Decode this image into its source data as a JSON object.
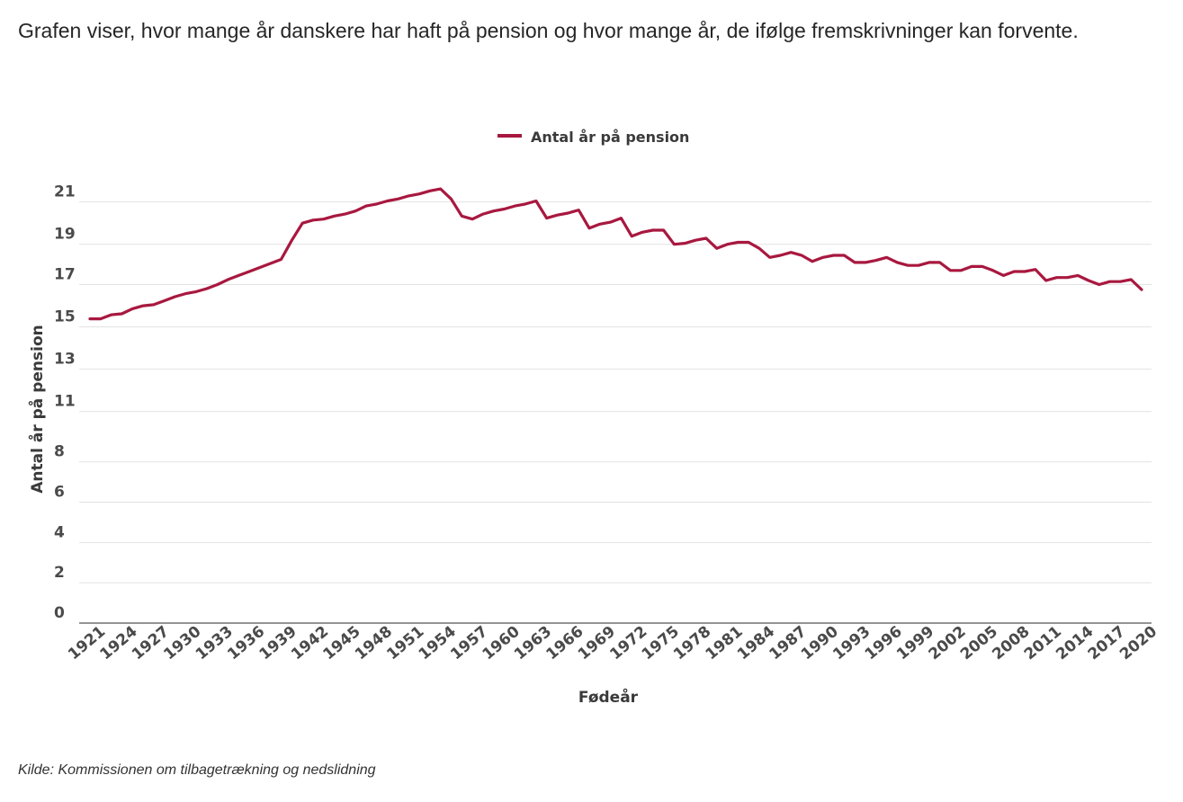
{
  "intro": "Grafen viser, hvor mange år danskere har haft på pension og hvor mange år, de ifølge fremskrivninger kan forvente.",
  "source": "Kilde: Kommissionen om tilbagetrækning og nedslidning",
  "chart_data": {
    "type": "line",
    "xlabel": "Fødeår",
    "ylabel": "Antal år på pension",
    "ylim": [
      0,
      21
    ],
    "y_ticks": [
      "0",
      "2",
      "4",
      "6",
      "8",
      "11",
      "13",
      "15",
      "17",
      "19",
      "21"
    ],
    "y_tick_values": [
      0,
      2,
      4,
      6,
      8,
      10.5,
      12.6,
      14.7,
      16.8,
      18.8,
      20.9
    ],
    "x_tick_labels": [
      "1921",
      "1924",
      "1927",
      "1930",
      "1933",
      "1936",
      "1939",
      "1942",
      "1945",
      "1948",
      "1951",
      "1954",
      "1957",
      "1960",
      "1963",
      "1966",
      "1969",
      "1972",
      "1975",
      "1978",
      "1981",
      "1984",
      "1987",
      "1990",
      "1993",
      "1996",
      "1999",
      "2002",
      "2005",
      "2008",
      "2011",
      "2014",
      "2017",
      "2020"
    ],
    "grid": true,
    "legend_position": "top-center",
    "x": [
      1921,
      1922,
      1923,
      1924,
      1925,
      1926,
      1927,
      1928,
      1929,
      1930,
      1931,
      1932,
      1933,
      1934,
      1935,
      1936,
      1937,
      1938,
      1939,
      1940,
      1941,
      1942,
      1943,
      1944,
      1945,
      1946,
      1947,
      1948,
      1949,
      1950,
      1951,
      1952,
      1953,
      1954,
      1955,
      1956,
      1957,
      1958,
      1959,
      1960,
      1961,
      1962,
      1963,
      1964,
      1965,
      1966,
      1967,
      1968,
      1969,
      1970,
      1971,
      1972,
      1973,
      1974,
      1975,
      1976,
      1977,
      1978,
      1979,
      1980,
      1981,
      1982,
      1983,
      1984,
      1985,
      1986,
      1987,
      1988,
      1989,
      1990,
      1991,
      1992,
      1993,
      1994,
      1995,
      1996,
      1997,
      1998,
      1999,
      2000,
      2001,
      2002,
      2003,
      2004,
      2005,
      2006,
      2007,
      2008,
      2009,
      2010,
      2011,
      2012,
      2013,
      2014,
      2015,
      2016,
      2017,
      2018,
      2019,
      2020
    ],
    "series": [
      {
        "name": "Antal år på pension",
        "color": "#a8183f",
        "values": [
          15.1,
          15.1,
          15.3,
          15.35,
          15.6,
          15.75,
          15.8,
          16.0,
          16.2,
          16.35,
          16.45,
          16.6,
          16.8,
          17.05,
          17.25,
          17.45,
          17.65,
          17.85,
          18.05,
          19.0,
          19.85,
          20.0,
          20.05,
          20.2,
          20.3,
          20.45,
          20.7,
          20.8,
          20.95,
          21.05,
          21.2,
          21.3,
          21.45,
          21.55,
          21.05,
          20.2,
          20.05,
          20.3,
          20.45,
          20.55,
          20.7,
          20.8,
          20.95,
          20.1,
          20.25,
          20.35,
          20.5,
          19.6,
          19.8,
          19.9,
          20.1,
          19.2,
          19.4,
          19.5,
          19.5,
          18.8,
          18.85,
          19.0,
          19.1,
          18.6,
          18.8,
          18.9,
          18.9,
          18.6,
          18.15,
          18.25,
          18.4,
          18.25,
          17.95,
          18.15,
          18.25,
          18.25,
          17.9,
          17.9,
          18.0,
          18.15,
          17.9,
          17.75,
          17.75,
          17.9,
          17.9,
          17.5,
          17.5,
          17.7,
          17.7,
          17.5,
          17.25,
          17.45,
          17.45,
          17.55,
          17.0,
          17.15,
          17.15,
          17.25,
          17.0,
          16.8,
          16.95,
          16.95,
          17.05,
          16.55
        ]
      }
    ]
  }
}
